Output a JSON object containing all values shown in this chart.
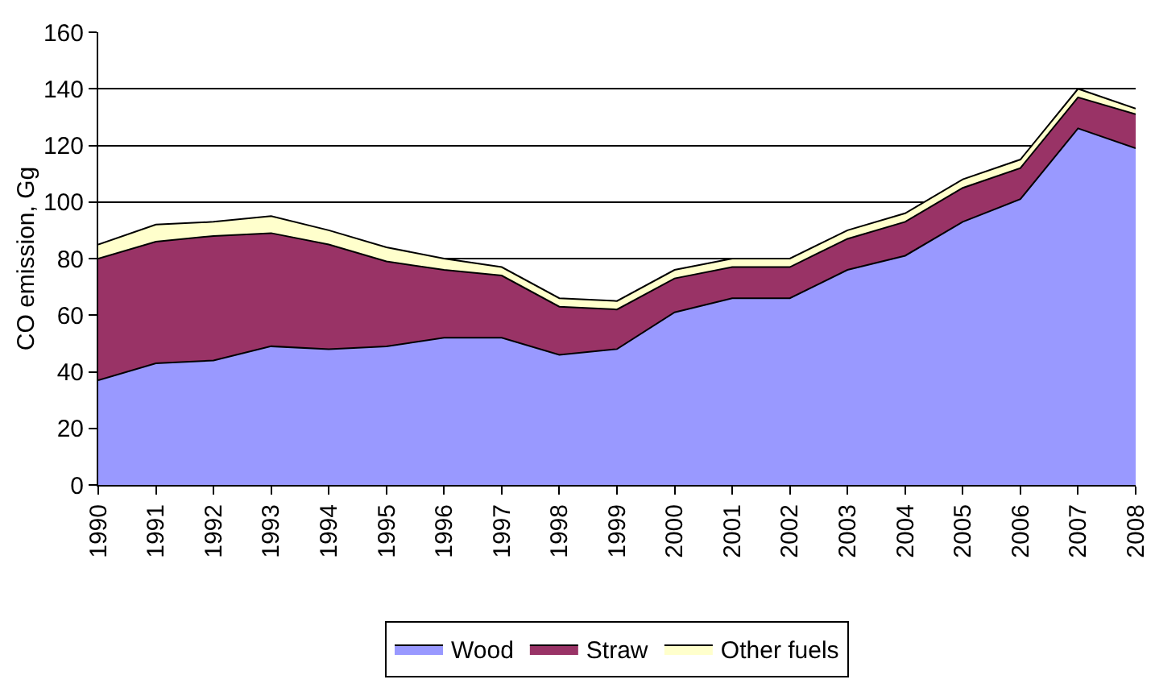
{
  "chart_data": {
    "type": "area",
    "stacked": true,
    "ylabel": "CO emission, Gg",
    "categories": [
      "1990",
      "1991",
      "1992",
      "1993",
      "1994",
      "1995",
      "1996",
      "1997",
      "1998",
      "1999",
      "2000",
      "2001",
      "2002",
      "2003",
      "2004",
      "2005",
      "2006",
      "2007",
      "2008"
    ],
    "series": [
      {
        "name": "Wood",
        "color": "#9999ff",
        "values": [
          37,
          43,
          44,
          49,
          48,
          49,
          52,
          52,
          46,
          48,
          61,
          66,
          66,
          76,
          81,
          93,
          101,
          126,
          119
        ]
      },
      {
        "name": "Straw",
        "color": "#993366",
        "values": [
          43,
          43,
          44,
          40,
          37,
          30,
          24,
          22,
          17,
          14,
          12,
          11,
          11,
          11,
          12,
          12,
          11,
          11,
          12
        ]
      },
      {
        "name": "Other fuels",
        "color": "#ffffcc",
        "values": [
          5,
          6,
          5,
          6,
          5,
          5,
          4,
          3,
          3,
          3,
          3,
          3,
          3,
          3,
          3,
          3,
          3,
          3,
          2
        ]
      }
    ],
    "ylim": [
      0,
      160
    ],
    "yticks": [
      0,
      20,
      40,
      60,
      80,
      100,
      120,
      140,
      160
    ],
    "grid": "y",
    "legend": "bottom"
  }
}
